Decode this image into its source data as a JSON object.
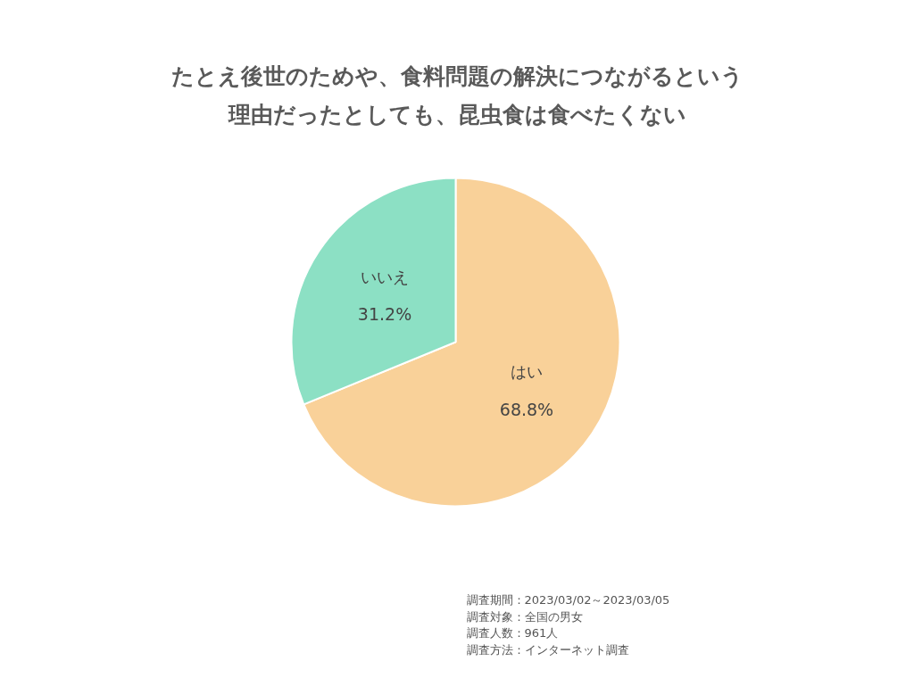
{
  "chart_data": {
    "type": "pie",
    "title": "たとえ後世のためや、食料問題の解決につながるという理由だったとしても、昆虫食は食べたくない",
    "categories": [
      "はい",
      "いいえ"
    ],
    "values": [
      68.8,
      31.2
    ],
    "colors": [
      "#f9d199",
      "#8ce0c4"
    ],
    "value_labels": [
      "68.8%",
      "31.2%"
    ],
    "annotations": [
      "調査期間：2023/03/02～2023/03/05",
      "調査対象：全国の男女",
      "調査人数：961人",
      "調査方法：インターネット調査"
    ]
  }
}
